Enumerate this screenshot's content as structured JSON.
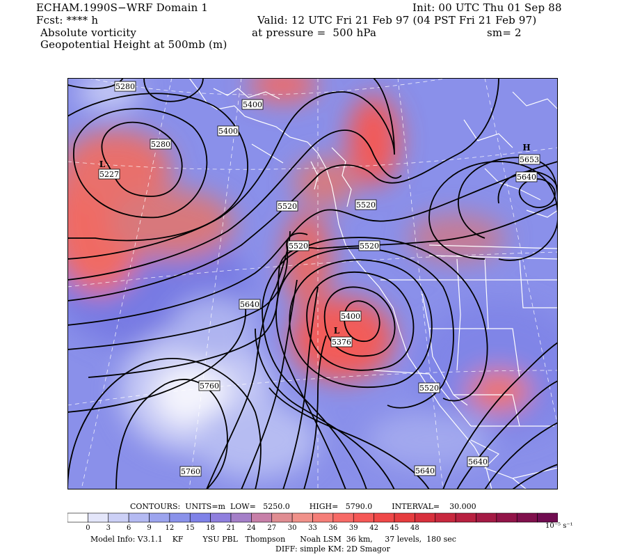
{
  "header": {
    "model_title": "ECHAM.1990S−WRF Domain 1",
    "init": "Init: 00 UTC Thu 01 Sep 88",
    "fcst": "Fcst: **** h",
    "valid": "Valid: 12 UTC Fri 21 Feb 97 (04 PST Fri 21 Feb 97)",
    "field1": "Absolute vorticity",
    "pressure": "at pressure =  500 hPa",
    "smooth": "sm= 2",
    "field2": "Geopotential Height at 500mb (m)"
  },
  "contour_labels": [
    "5280",
    "5400",
    "5400",
    "5280",
    "5227",
    "5653",
    "5640",
    "5520",
    "5520",
    "5520",
    "5520",
    "5640",
    "5400",
    "5376",
    "5760",
    "5520",
    "5760",
    "5640",
    "5640"
  ],
  "centers": [
    "L",
    "H",
    "L"
  ],
  "footer": {
    "contours_line": "CONTOURS:  UNITS=m  LOW=   5250.0        HIGH=   5790.0        INTERVAL=    30.000",
    "units": "10⁻⁵ s⁻¹",
    "model_info": "Model Info: V3.1.1    KF        YSU PBL   Thompson      Noah LSM  36 km,     37 levels,  180 sec",
    "diff": "DIFF: simple KM: 2D Smagor"
  },
  "legend": {
    "ticks": [
      "0",
      "3",
      "6",
      "9",
      "12",
      "15",
      "18",
      "21",
      "24",
      "27",
      "30",
      "33",
      "36",
      "39",
      "42",
      "45",
      "48"
    ],
    "colors": [
      "#ffffff",
      "#e4e6fa",
      "#ccd0f6",
      "#b4baf2",
      "#9ca4ee",
      "#8a92ea",
      "#7f82e8",
      "#8f7fde",
      "#a47fc8",
      "#c77fa8",
      "#e08d92",
      "#f0918a",
      "#f57e78",
      "#f76a66",
      "#f55856",
      "#ef4848",
      "#e63c3e",
      "#d8303c",
      "#c8283e",
      "#b82040",
      "#a41a44",
      "#921448",
      "#80104c",
      "#700c50"
    ]
  }
}
